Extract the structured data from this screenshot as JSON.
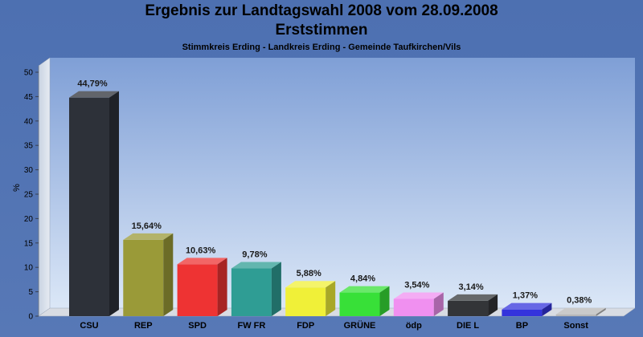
{
  "header": {
    "title_line1": "Ergebnis zur Landtagswahl 2008 vom 28.09.2008",
    "title_line2": "Erststimmen",
    "subtitle": "Stimmkreis Erding - Landkreis Erding - Gemeinde Taufkirchen/Vils"
  },
  "colors": {
    "background": "#5274b3",
    "plot_top": "#7f9fd6",
    "plot_bottom": "#dbe7f7"
  },
  "chart_data": {
    "type": "bar",
    "title": "Ergebnis zur Landtagswahl 2008 vom 28.09.2008",
    "subtitle": "Erststimmen",
    "ylabel": "%",
    "ylim": [
      0,
      50
    ],
    "yticks": [
      0,
      5,
      10,
      15,
      20,
      25,
      30,
      35,
      40,
      45,
      50
    ],
    "grid": false,
    "categories": [
      "CSU",
      "REP",
      "SPD",
      "FW FR",
      "FDP",
      "GRÜNE",
      "ödp",
      "DIE L",
      "BP",
      "Sonst"
    ],
    "values": [
      44.79,
      15.64,
      10.63,
      9.78,
      5.88,
      4.84,
      3.54,
      3.14,
      1.37,
      0.38
    ],
    "value_labels": [
      "44,79%",
      "15,64%",
      "10,63%",
      "9,78%",
      "5,88%",
      "4,84%",
      "3,54%",
      "3,14%",
      "1,37%",
      "0,38%"
    ],
    "bar_colors": [
      "#2d3139",
      "#9a9a38",
      "#ee3333",
      "#2f9d94",
      "#f0f038",
      "#38e038",
      "#f090f0",
      "#333538",
      "#3434dc",
      "#b8b8b8"
    ]
  }
}
